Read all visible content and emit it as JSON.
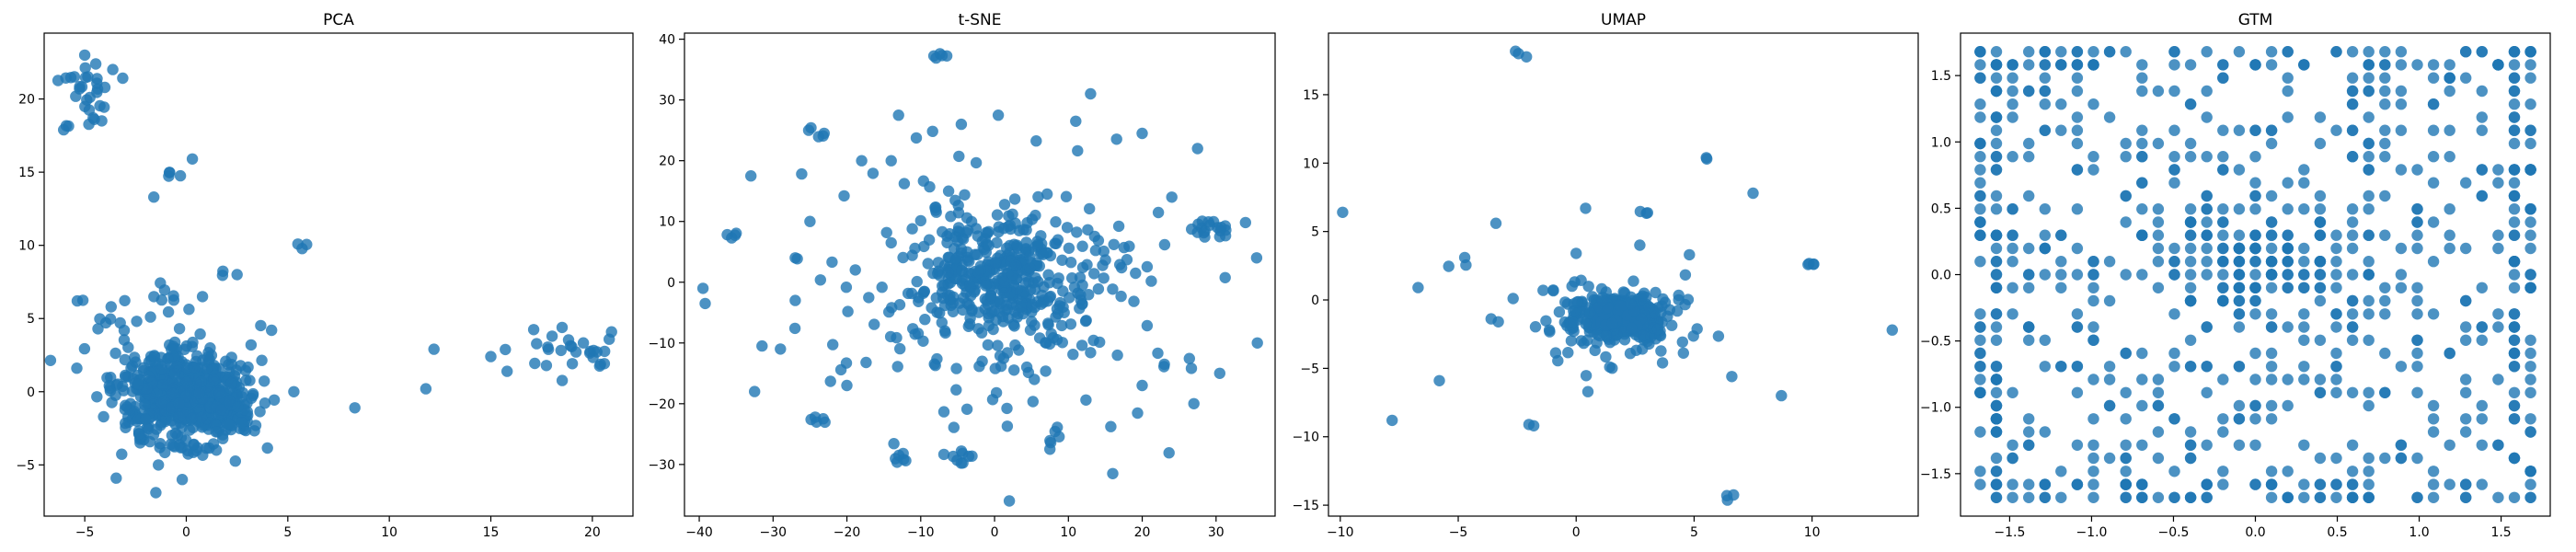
{
  "chart_data": [
    {
      "type": "scatter",
      "title": "PCA",
      "xlabel": "",
      "ylabel": "",
      "xlim": [
        -7,
        22
      ],
      "ylim": [
        -8.5,
        24.5
      ],
      "xticks": [
        -5,
        0,
        5,
        10,
        15,
        20
      ],
      "yticks": [
        -5,
        0,
        5,
        10,
        15,
        20
      ],
      "color": "#1f77b4",
      "grid": false,
      "clusters": [
        {
          "center": [
            -0.3,
            -0.5
          ],
          "spread": [
            1.6,
            1.8
          ],
          "count": 520
        },
        {
          "center": [
            1.5,
            -0.5
          ],
          "spread": [
            1.0,
            0.9
          ],
          "count": 120
        },
        {
          "center": [
            -4.7,
            20.5
          ],
          "spread": [
            0.5,
            1.0
          ],
          "count": 25
        },
        {
          "center": [
            -6.0,
            21.5
          ],
          "spread": [
            0.3,
            0.2
          ],
          "count": 4
        },
        {
          "center": [
            -6.0,
            18.0
          ],
          "spread": [
            0.2,
            0.1
          ],
          "count": 3
        },
        {
          "center": [
            -0.7,
            14.8
          ],
          "spread": [
            0.2,
            0.3
          ],
          "count": 4
        },
        {
          "center": [
            18.8,
            2.8
          ],
          "spread": [
            1.3,
            0.7
          ],
          "count": 30
        },
        {
          "center": [
            -1.0,
            6.3
          ],
          "spread": [
            0.7,
            0.5
          ],
          "count": 8
        },
        {
          "center": [
            -4.5,
            5.2
          ],
          "spread": [
            1.0,
            0.7
          ],
          "count": 8
        },
        {
          "center": [
            5.6,
            9.6
          ],
          "spread": [
            0.2,
            0.3
          ],
          "count": 3
        },
        {
          "center": [
            2.0,
            7.9
          ],
          "spread": [
            0.2,
            0.2
          ],
          "count": 2
        }
      ],
      "points": [
        [
          -5.0,
          23.0
        ],
        [
          0.3,
          15.9
        ],
        [
          -1.6,
          13.3
        ],
        [
          12.2,
          2.9
        ],
        [
          11.8,
          0.2
        ],
        [
          8.3,
          -1.1
        ],
        [
          15.0,
          2.4
        ],
        [
          5.3,
          0.0
        ],
        [
          -1.5,
          -6.9
        ],
        [
          -0.2,
          -6.0
        ],
        [
          1.8,
          -3.2
        ],
        [
          2.5,
          8.0
        ],
        [
          -3.7,
          5.8
        ],
        [
          4.2,
          4.2
        ],
        [
          0.8,
          6.5
        ]
      ]
    },
    {
      "type": "scatter",
      "title": "t-SNE",
      "xlabel": "",
      "ylabel": "",
      "xlim": [
        -42,
        38
      ],
      "ylim": [
        -38.5,
        41
      ],
      "xticks": [
        -40,
        -30,
        -20,
        -10,
        0,
        10,
        20,
        30
      ],
      "yticks": [
        -30,
        -20,
        -10,
        0,
        10,
        20,
        30,
        40
      ],
      "color": "#1f77b4",
      "grid": false,
      "clusters": [
        {
          "center": [
            1.5,
            1.0
          ],
          "spread": [
            4.5,
            4.5
          ],
          "count": 260
        },
        {
          "center": [
            0.0,
            0.0
          ],
          "spread": [
            11.0,
            11.0
          ],
          "count": 260
        },
        {
          "center": [
            29.5,
            9.2
          ],
          "spread": [
            1.2,
            0.8
          ],
          "count": 18
        },
        {
          "center": [
            -7.5,
            37.4
          ],
          "spread": [
            0.5,
            0.3
          ],
          "count": 5
        },
        {
          "center": [
            -4.5,
            -28.8
          ],
          "spread": [
            1.0,
            0.6
          ],
          "count": 8
        },
        {
          "center": [
            -12.6,
            -29.0
          ],
          "spread": [
            0.6,
            0.6
          ],
          "count": 6
        },
        {
          "center": [
            -24.3,
            -22.4
          ],
          "spread": [
            0.7,
            0.6
          ],
          "count": 5
        },
        {
          "center": [
            -24.3,
            24.7
          ],
          "spread": [
            0.7,
            0.4
          ],
          "count": 5
        },
        {
          "center": [
            8.0,
            -26.0
          ],
          "spread": [
            0.8,
            1.0
          ],
          "count": 6
        },
        {
          "center": [
            -35.6,
            7.8
          ],
          "spread": [
            0.5,
            0.3
          ],
          "count": 4
        }
      ],
      "points": [
        [
          -39.5,
          -1.0
        ],
        [
          -39.2,
          -3.5
        ],
        [
          -33.0,
          17.5
        ],
        [
          -32.5,
          -18.0
        ],
        [
          -31.5,
          -10.5
        ],
        [
          35.5,
          4.0
        ],
        [
          35.6,
          -10.0
        ],
        [
          27.5,
          22.0
        ],
        [
          2.0,
          -36.0
        ],
        [
          13.0,
          31.0
        ],
        [
          -13.0,
          27.5
        ],
        [
          11.0,
          26.5
        ],
        [
          20.0,
          24.5
        ],
        [
          16.0,
          -31.5
        ],
        [
          27.0,
          -20.0
        ],
        [
          30.5,
          -15.0
        ],
        [
          -14.0,
          20.0
        ],
        [
          -18.0,
          20.0
        ],
        [
          -25.0,
          10.0
        ],
        [
          -27.0,
          4.0
        ],
        [
          -27.0,
          -3.0
        ],
        [
          20.0,
          -17.0
        ],
        [
          23.0,
          -13.5
        ],
        [
          0.5,
          27.5
        ],
        [
          -4.5,
          26.0
        ],
        [
          -29.0,
          -11.0
        ],
        [
          24.0,
          14.0
        ],
        [
          -20.0,
          -17.0
        ]
      ]
    },
    {
      "type": "scatter",
      "title": "UMAP",
      "xlabel": "",
      "ylabel": "",
      "xlim": [
        -10.5,
        14.5
      ],
      "ylim": [
        -15.8,
        19.5
      ],
      "xticks": [
        -10,
        -5,
        0,
        5,
        10
      ],
      "yticks": [
        -15,
        -10,
        -5,
        0,
        5,
        10,
        15
      ],
      "color": "#1f77b4",
      "grid": false,
      "clusters": [
        {
          "center": [
            1.8,
            -1.3
          ],
          "spread": [
            1.0,
            0.9
          ],
          "count": 380
        },
        {
          "center": [
            2.0,
            -1.0
          ],
          "spread": [
            2.0,
            1.6
          ],
          "count": 70
        },
        {
          "center": [
            9.9,
            2.6
          ],
          "spread": [
            0.2,
            0.1
          ],
          "count": 4
        },
        {
          "center": [
            6.3,
            -14.4
          ],
          "spread": [
            0.2,
            0.2
          ],
          "count": 3
        },
        {
          "center": [
            -2.3,
            18.0
          ],
          "spread": [
            0.1,
            0.1
          ],
          "count": 3
        },
        {
          "center": [
            5.6,
            10.4
          ],
          "spread": [
            0.1,
            0.1
          ],
          "count": 2
        },
        {
          "center": [
            3.2,
            6.5
          ],
          "spread": [
            0.2,
            0.3
          ],
          "count": 3
        },
        {
          "center": [
            -4.8,
            2.5
          ],
          "spread": [
            0.3,
            0.3
          ],
          "count": 3
        }
      ],
      "points": [
        [
          -9.9,
          6.4
        ],
        [
          -7.8,
          -8.8
        ],
        [
          -6.7,
          0.9
        ],
        [
          -5.8,
          -5.9
        ],
        [
          -3.4,
          5.6
        ],
        [
          -2.0,
          -9.1
        ],
        [
          -1.8,
          -9.2
        ],
        [
          -1.4,
          0.7
        ],
        [
          0.4,
          6.7
        ],
        [
          0.5,
          -6.7
        ],
        [
          7.5,
          7.8
        ],
        [
          13.4,
          -2.2
        ],
        [
          8.7,
          -7.0
        ],
        [
          6.6,
          -5.6
        ],
        [
          2.7,
          4.0
        ],
        [
          0.0,
          3.4
        ],
        [
          -3.3,
          -1.6
        ],
        [
          4.8,
          3.3
        ]
      ]
    },
    {
      "type": "scatter",
      "title": "GTM",
      "xlabel": "",
      "ylabel": "",
      "xlim": [
        -1.8,
        1.8
      ],
      "ylim": [
        -1.82,
        1.82
      ],
      "xticks": [
        -1.5,
        -1.0,
        -0.5,
        0.0,
        0.5,
        1.0,
        1.5
      ],
      "yticks": [
        -1.5,
        -1.0,
        -0.5,
        0.0,
        0.5,
        1.0,
        1.5
      ],
      "color": "#1f77b4",
      "grid": false,
      "lattice": {
        "min": -1.68,
        "max": 1.68,
        "steps": 34,
        "count": 560,
        "edge_count": 220,
        "center_count": 120
      }
    }
  ]
}
